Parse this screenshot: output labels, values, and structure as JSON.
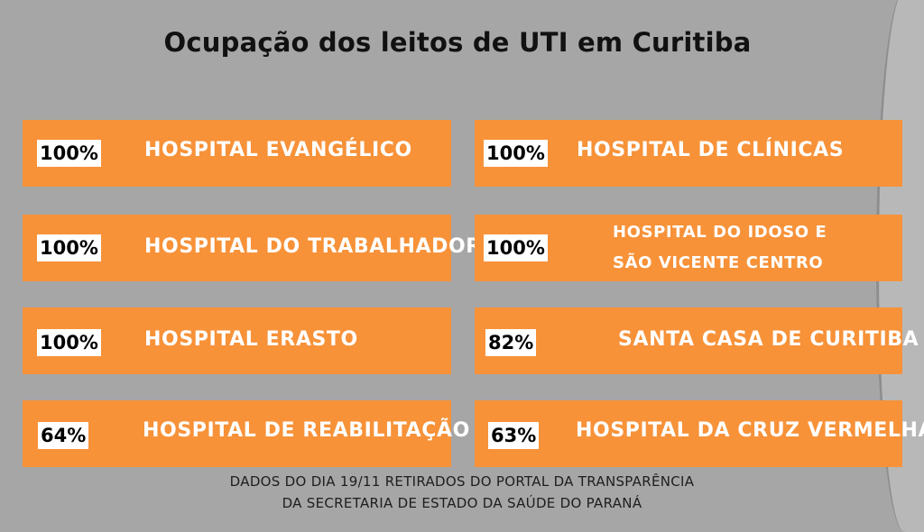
{
  "title": "Ocupação dos leitos de UTI em Curitiba",
  "cards": [
    {
      "pct": "100%",
      "name": "HOSPITAL EVANGÉLICO"
    },
    {
      "pct": "100%",
      "name": "HOSPITAL DE CLÍNICAS"
    },
    {
      "pct": "100%",
      "name": "HOSPITAL DO TRABALHADOR"
    },
    {
      "pct": "100%",
      "name_line1": "HOSPITAL DO IDOSO E",
      "name_line2": "SÃO VICENTE CENTRO"
    },
    {
      "pct": "100%",
      "name": "HOSPITAL ERASTO"
    },
    {
      "pct": "82%",
      "name": "SANTA CASA DE CURITIBA"
    },
    {
      "pct": "64%",
      "name": "HOSPITAL DE REABILITAÇÃO"
    },
    {
      "pct": "63%",
      "name": "HOSPITAL DA CRUZ VERMELHA"
    }
  ],
  "footer": {
    "line1": "DADOS DO DIA 19/11 RETIRADOS DO PORTAL DA TRANSPARÊNCIA",
    "line2": "DA SECRETARIA DE ESTADO DA SAÚDE DO PARANÁ"
  },
  "colors": {
    "background": "#a6a6a6",
    "card": "#f79239",
    "badge": "#ffffff"
  }
}
